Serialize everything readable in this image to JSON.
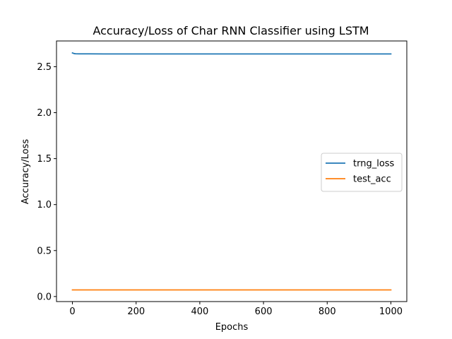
{
  "chart_data": {
    "type": "line",
    "title": "Accuracy/Loss of Char RNN Classifier using LSTM",
    "xlabel": "Epochs",
    "ylabel": "Accuracy/Loss",
    "xlim": [
      -50,
      1050
    ],
    "ylim": [
      -0.055,
      2.78
    ],
    "xticks": [
      0,
      200,
      400,
      600,
      800,
      1000
    ],
    "xtick_labels": [
      "0",
      "200",
      "400",
      "600",
      "800",
      "1000"
    ],
    "yticks": [
      0.0,
      0.5,
      1.0,
      1.5,
      2.0,
      2.5
    ],
    "ytick_labels": [
      "0.0",
      "0.5",
      "1.0",
      "1.5",
      "2.0",
      "2.5"
    ],
    "grid": false,
    "legend_position": "center-right",
    "series": [
      {
        "name": "trng_loss",
        "color": "#1f77b4",
        "x": [
          0,
          5,
          10,
          20,
          50,
          100,
          200,
          300,
          400,
          500,
          600,
          700,
          800,
          900,
          1000
        ],
        "y": [
          2.65,
          2.643,
          2.641,
          2.64,
          2.64,
          2.639,
          2.639,
          2.639,
          2.639,
          2.639,
          2.639,
          2.639,
          2.639,
          2.639,
          2.639
        ]
      },
      {
        "name": "test_acc",
        "color": "#ff7f0e",
        "x": [
          0,
          1000
        ],
        "y": [
          0.072,
          0.072
        ]
      }
    ]
  }
}
